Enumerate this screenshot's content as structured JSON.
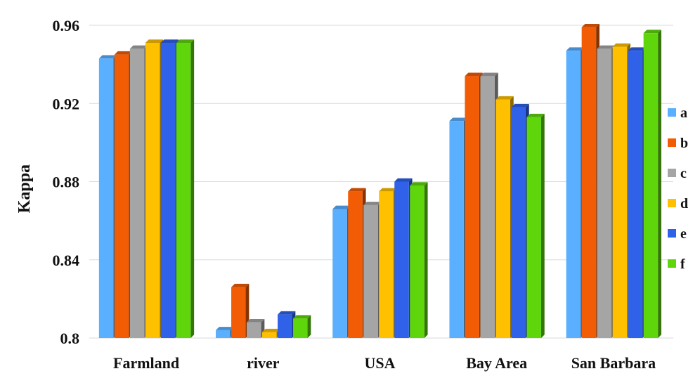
{
  "chart_data": {
    "type": "bar",
    "title": "",
    "xlabel": "",
    "ylabel": "Kappa",
    "ylim": [
      0.8,
      0.96
    ],
    "yticks": [
      "0.8",
      "0.84",
      "0.88",
      "0.92",
      "0.96"
    ],
    "grid": true,
    "legend_position": "right",
    "style": "3d",
    "categories": [
      "Farmland",
      "river",
      "USA",
      "Bay Area",
      "San Barbara"
    ],
    "series": [
      {
        "name": "a",
        "color": "#5aafff",
        "values": [
          0.943,
          0.804,
          0.866,
          0.911,
          0.947
        ]
      },
      {
        "name": "b",
        "color": "#f25c05",
        "values": [
          0.945,
          0.826,
          0.875,
          0.934,
          0.959
        ]
      },
      {
        "name": "c",
        "color": "#a5a5a5",
        "values": [
          0.948,
          0.808,
          0.868,
          0.934,
          0.948
        ]
      },
      {
        "name": "d",
        "color": "#ffc000",
        "values": [
          0.951,
          0.803,
          0.875,
          0.922,
          0.949
        ]
      },
      {
        "name": "e",
        "color": "#2f62e8",
        "values": [
          0.951,
          0.812,
          0.88,
          0.918,
          0.947
        ]
      },
      {
        "name": "f",
        "color": "#5fd50c",
        "values": [
          0.951,
          0.81,
          0.878,
          0.913,
          0.956
        ]
      }
    ]
  }
}
